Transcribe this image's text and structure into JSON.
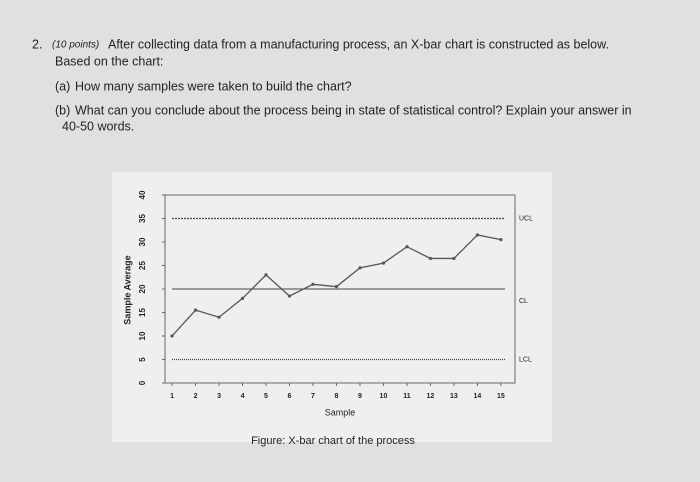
{
  "question": {
    "number": "2.",
    "points": "(10 points)",
    "text": "After collecting data from a manufacturing process, an X-bar chart is constructed as below.",
    "text2": "Based on the chart:",
    "parts": [
      {
        "label": "(a)",
        "text": "How many samples were taken to build the chart?"
      },
      {
        "label": "(b)",
        "text": "What can you conclude about the process being in state of statistical control? Explain your answer in",
        "text2": "40-50 words."
      }
    ]
  },
  "chart_data": {
    "type": "line",
    "x": [
      1,
      2,
      3,
      4,
      5,
      6,
      7,
      8,
      9,
      10,
      11,
      12,
      13,
      14,
      15
    ],
    "series": [
      {
        "color": "#555555",
        "values": [
          10,
          15.5,
          14,
          18,
          23,
          18.5,
          21,
          20.5,
          24.5,
          25.5,
          29,
          26.5,
          26.5,
          31.5,
          30.5
        ]
      }
    ],
    "control_limits": [
      {
        "label": "UCL",
        "value": 35
      },
      {
        "label": "CL",
        "value": 20
      },
      {
        "label": "LCL",
        "value": 5
      }
    ],
    "xlim": [
      0.7,
      15.6
    ],
    "xticks": [
      1,
      2,
      3,
      4,
      5,
      6,
      7,
      8,
      9,
      10,
      11,
      12,
      13,
      14,
      15
    ],
    "ylim": [
      0,
      40
    ],
    "yticks": [
      0,
      5,
      10,
      15,
      20,
      25,
      30,
      35,
      40
    ],
    "xlabel": "Sample",
    "ylabel": "Sample Average",
    "caption": "Figure: X-bar chart of the process"
  }
}
